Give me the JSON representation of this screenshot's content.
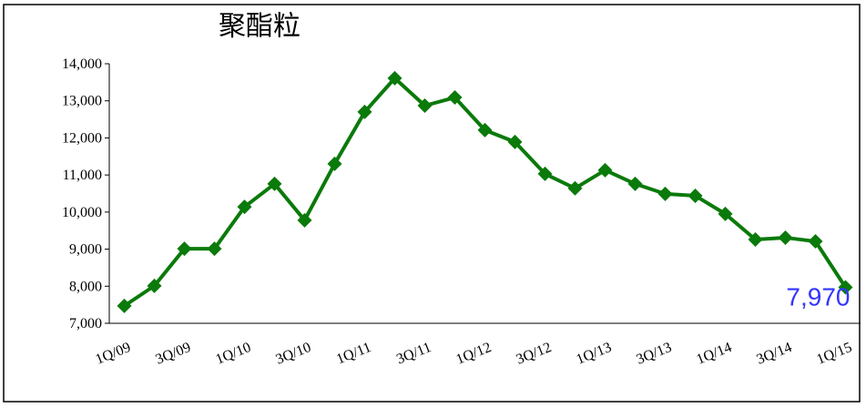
{
  "chart_data": {
    "type": "line",
    "title": "聚酯粒",
    "categories": [
      "1Q/09",
      null,
      "3Q/09",
      null,
      "1Q/10",
      null,
      "3Q/10",
      null,
      "1Q/11",
      null,
      "3Q/11",
      null,
      "1Q/12",
      null,
      "3Q/12",
      null,
      "1Q/13",
      null,
      "3Q/13",
      null,
      "1Q/14",
      null,
      "3Q/14",
      null,
      "1Q/15"
    ],
    "series": [
      {
        "name": "聚酯粒",
        "color": "#0a7a0a",
        "values": [
          7470,
          8010,
          9010,
          9010,
          10140,
          10760,
          9780,
          11300,
          12700,
          13610,
          12870,
          13090,
          12210,
          11890,
          11030,
          10640,
          11130,
          10760,
          10490,
          10440,
          9950,
          9260,
          9310,
          9210,
          7970
        ],
        "value_labels": [
          null,
          null,
          null,
          null,
          null,
          null,
          null,
          null,
          null,
          null,
          null,
          null,
          null,
          null,
          null,
          null,
          null,
          null,
          null,
          null,
          null,
          null,
          null,
          null,
          "7,970"
        ],
        "value_label_color": "#3333ff"
      }
    ],
    "ylim": [
      7000,
      14000
    ],
    "yticks": [
      {
        "value": 7000,
        "label": "7,000"
      },
      {
        "value": 8000,
        "label": "8,000"
      },
      {
        "value": 9000,
        "label": "9,000"
      },
      {
        "value": 10000,
        "label": "10,000"
      },
      {
        "value": 11000,
        "label": "11,000"
      },
      {
        "value": 12000,
        "label": "12,000"
      },
      {
        "value": 13000,
        "label": "13,000"
      },
      {
        "value": 14000,
        "label": "14,000"
      }
    ],
    "grid": false
  }
}
